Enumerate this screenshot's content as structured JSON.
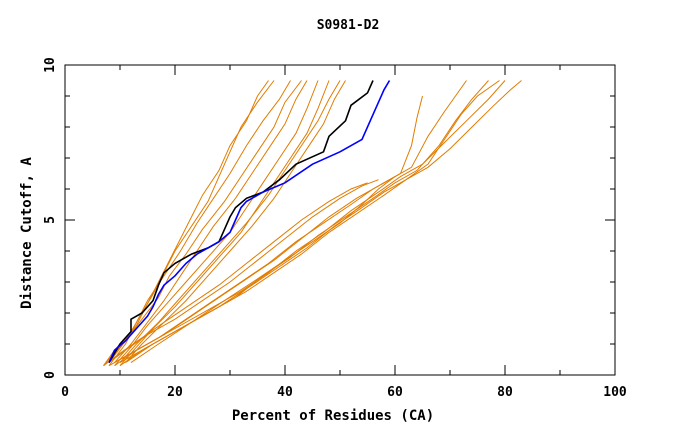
{
  "chart_data": {
    "type": "line",
    "title": "S0981-D2",
    "xlabel": "Percent of Residues (CA)",
    "ylabel": "Distance Cutoff, A",
    "xlim": [
      0,
      100
    ],
    "ylim": [
      0,
      10
    ],
    "x_ticks": [
      0,
      20,
      40,
      60,
      80,
      100
    ],
    "y_ticks": [
      0,
      5,
      10
    ],
    "x_tick_labels": [
      "0",
      "20",
      "40",
      "60",
      "80",
      "100"
    ],
    "y_tick_labels": [
      "0",
      "5",
      "10"
    ],
    "grid": false,
    "colors": {
      "highlight_1": "#000000",
      "highlight_2": "#0000ff",
      "others": "#e07c00"
    },
    "series": [
      {
        "color": "#000000",
        "points": [
          [
            8,
            0.4
          ],
          [
            9,
            0.7
          ],
          [
            10,
            1.0
          ],
          [
            12,
            1.4
          ],
          [
            12,
            1.8
          ],
          [
            14,
            2.0
          ],
          [
            16,
            2.4
          ],
          [
            17,
            2.9
          ],
          [
            18,
            3.3
          ],
          [
            20,
            3.6
          ],
          [
            23,
            3.9
          ],
          [
            26,
            4.1
          ],
          [
            28,
            4.3
          ],
          [
            29,
            4.7
          ],
          [
            30,
            5.1
          ],
          [
            31,
            5.4
          ],
          [
            33,
            5.7
          ],
          [
            36,
            5.9
          ],
          [
            39,
            6.3
          ],
          [
            42,
            6.8
          ],
          [
            47,
            7.2
          ],
          [
            48,
            7.7
          ],
          [
            51,
            8.2
          ],
          [
            52,
            8.7
          ],
          [
            55,
            9.1
          ],
          [
            56,
            9.5
          ]
        ]
      },
      {
        "color": "#0000ff",
        "points": [
          [
            8,
            0.4
          ],
          [
            9,
            0.8
          ],
          [
            11,
            1.1
          ],
          [
            13,
            1.5
          ],
          [
            15,
            1.9
          ],
          [
            16,
            2.2
          ],
          [
            17,
            2.6
          ],
          [
            18,
            2.9
          ],
          [
            20,
            3.2
          ],
          [
            22,
            3.6
          ],
          [
            24,
            3.9
          ],
          [
            26,
            4.1
          ],
          [
            28,
            4.3
          ],
          [
            30,
            4.6
          ],
          [
            31,
            5.0
          ],
          [
            32,
            5.4
          ],
          [
            33,
            5.6
          ],
          [
            36,
            5.9
          ],
          [
            40,
            6.2
          ],
          [
            45,
            6.8
          ],
          [
            50,
            7.2
          ],
          [
            54,
            7.6
          ],
          [
            56,
            8.4
          ],
          [
            58,
            9.2
          ],
          [
            59,
            9.5
          ]
        ]
      },
      {
        "color": "#e07c00",
        "points": [
          [
            7,
            0.3
          ],
          [
            10,
            0.9
          ],
          [
            13,
            1.6
          ],
          [
            15,
            2.3
          ],
          [
            17,
            3.0
          ],
          [
            19,
            3.7
          ],
          [
            21,
            4.4
          ],
          [
            23,
            5.1
          ],
          [
            25,
            5.8
          ],
          [
            28,
            6.6
          ],
          [
            30,
            7.4
          ],
          [
            33,
            8.2
          ],
          [
            35,
            9.0
          ],
          [
            37,
            9.5
          ]
        ]
      },
      {
        "color": "#e07c00",
        "points": [
          [
            7,
            0.3
          ],
          [
            9,
            0.8
          ],
          [
            12,
            1.4
          ],
          [
            14,
            2.0
          ],
          [
            16,
            2.6
          ],
          [
            18,
            3.3
          ],
          [
            20,
            4.0
          ],
          [
            23,
            4.8
          ],
          [
            26,
            5.6
          ],
          [
            28,
            6.4
          ],
          [
            30,
            7.2
          ],
          [
            32,
            8.0
          ],
          [
            35,
            8.8
          ],
          [
            38,
            9.5
          ]
        ]
      },
      {
        "color": "#e07c00",
        "points": [
          [
            8,
            0.3
          ],
          [
            11,
            1.0
          ],
          [
            13,
            1.7
          ],
          [
            15,
            2.4
          ],
          [
            18,
            3.2
          ],
          [
            21,
            4.0
          ],
          [
            24,
            4.9
          ],
          [
            27,
            5.7
          ],
          [
            30,
            6.5
          ],
          [
            33,
            7.4
          ],
          [
            36,
            8.2
          ],
          [
            39,
            8.9
          ],
          [
            41,
            9.5
          ]
        ]
      },
      {
        "color": "#e07c00",
        "points": [
          [
            8,
            0.4
          ],
          [
            11,
            1.1
          ],
          [
            14,
            1.8
          ],
          [
            17,
            2.5
          ],
          [
            19,
            3.2
          ],
          [
            22,
            3.9
          ],
          [
            25,
            4.7
          ],
          [
            29,
            5.6
          ],
          [
            32,
            6.4
          ],
          [
            35,
            7.2
          ],
          [
            38,
            8.0
          ],
          [
            40,
            8.8
          ],
          [
            43,
            9.5
          ]
        ]
      },
      {
        "color": "#e07c00",
        "points": [
          [
            9,
            0.4
          ],
          [
            12,
            1.0
          ],
          [
            15,
            1.7
          ],
          [
            18,
            2.4
          ],
          [
            21,
            3.2
          ],
          [
            24,
            4.0
          ],
          [
            27,
            4.8
          ],
          [
            31,
            5.7
          ],
          [
            34,
            6.5
          ],
          [
            37,
            7.3
          ],
          [
            40,
            8.1
          ],
          [
            42,
            8.9
          ],
          [
            44,
            9.5
          ]
        ]
      },
      {
        "color": "#e07c00",
        "points": [
          [
            9,
            0.3
          ],
          [
            12,
            0.9
          ],
          [
            15,
            1.6
          ],
          [
            18,
            2.2
          ],
          [
            22,
            3.0
          ],
          [
            26,
            3.8
          ],
          [
            30,
            4.6
          ],
          [
            33,
            5.4
          ],
          [
            36,
            6.2
          ],
          [
            39,
            7.0
          ],
          [
            42,
            7.8
          ],
          [
            44,
            8.6
          ],
          [
            46,
            9.5
          ]
        ]
      },
      {
        "color": "#e07c00",
        "points": [
          [
            10,
            0.3
          ],
          [
            13,
            0.9
          ],
          [
            16,
            1.5
          ],
          [
            20,
            2.2
          ],
          [
            24,
            3.0
          ],
          [
            28,
            3.8
          ],
          [
            32,
            4.6
          ],
          [
            35,
            5.4
          ],
          [
            38,
            6.2
          ],
          [
            41,
            7.0
          ],
          [
            44,
            7.8
          ],
          [
            46,
            8.6
          ],
          [
            48,
            9.5
          ]
        ]
      },
      {
        "color": "#e07c00",
        "points": [
          [
            10,
            0.4
          ],
          [
            13,
            1.0
          ],
          [
            17,
            1.7
          ],
          [
            21,
            2.5
          ],
          [
            25,
            3.3
          ],
          [
            29,
            4.1
          ],
          [
            33,
            4.9
          ],
          [
            37,
            5.8
          ],
          [
            40,
            6.6
          ],
          [
            43,
            7.4
          ],
          [
            46,
            8.2
          ],
          [
            48,
            8.9
          ],
          [
            50,
            9.5
          ]
        ]
      },
      {
        "color": "#e07c00",
        "points": [
          [
            11,
            0.4
          ],
          [
            14,
            1.0
          ],
          [
            18,
            1.7
          ],
          [
            22,
            2.4
          ],
          [
            26,
            3.2
          ],
          [
            30,
            4.0
          ],
          [
            34,
            4.8
          ],
          [
            38,
            5.7
          ],
          [
            41,
            6.5
          ],
          [
            44,
            7.3
          ],
          [
            47,
            8.1
          ],
          [
            49,
            8.9
          ],
          [
            51,
            9.5
          ]
        ]
      },
      {
        "color": "#e07c00",
        "points": [
          [
            7,
            0.3
          ],
          [
            10,
            0.7
          ],
          [
            14,
            1.2
          ],
          [
            18,
            1.7
          ],
          [
            23,
            2.3
          ],
          [
            28,
            2.9
          ],
          [
            33,
            3.6
          ],
          [
            38,
            4.3
          ],
          [
            43,
            5.0
          ],
          [
            48,
            5.6
          ],
          [
            52,
            6.0
          ],
          [
            55,
            6.2
          ]
        ]
      },
      {
        "color": "#e07c00",
        "points": [
          [
            8,
            0.4
          ],
          [
            11,
            0.8
          ],
          [
            15,
            1.3
          ],
          [
            20,
            1.8
          ],
          [
            25,
            2.4
          ],
          [
            30,
            3.0
          ],
          [
            35,
            3.7
          ],
          [
            40,
            4.4
          ],
          [
            45,
            5.1
          ],
          [
            50,
            5.7
          ],
          [
            54,
            6.1
          ],
          [
            57,
            6.3
          ]
        ]
      },
      {
        "color": "#e07c00",
        "points": [
          [
            8,
            0.3
          ],
          [
            12,
            0.7
          ],
          [
            17,
            1.2
          ],
          [
            22,
            1.8
          ],
          [
            27,
            2.4
          ],
          [
            32,
            3.0
          ],
          [
            37,
            3.6
          ],
          [
            42,
            4.3
          ],
          [
            47,
            4.9
          ],
          [
            52,
            5.5
          ],
          [
            56,
            6.0
          ],
          [
            60,
            6.4
          ]
        ]
      },
      {
        "color": "#e07c00",
        "points": [
          [
            9,
            0.3
          ],
          [
            13,
            0.8
          ],
          [
            18,
            1.3
          ],
          [
            23,
            1.9
          ],
          [
            28,
            2.5
          ],
          [
            33,
            3.1
          ],
          [
            38,
            3.7
          ],
          [
            43,
            4.4
          ],
          [
            48,
            5.1
          ],
          [
            53,
            5.7
          ],
          [
            57,
            6.1
          ],
          [
            61,
            6.5
          ],
          [
            63,
            7.4
          ],
          [
            64,
            8.3
          ],
          [
            65,
            9.0
          ]
        ]
      },
      {
        "color": "#e07c00",
        "points": [
          [
            10,
            0.3
          ],
          [
            14,
            0.8
          ],
          [
            19,
            1.3
          ],
          [
            25,
            1.9
          ],
          [
            31,
            2.5
          ],
          [
            36,
            3.2
          ],
          [
            41,
            3.8
          ],
          [
            46,
            4.5
          ],
          [
            51,
            5.1
          ],
          [
            56,
            5.7
          ],
          [
            60,
            6.2
          ],
          [
            64,
            6.6
          ],
          [
            68,
            7.4
          ],
          [
            71,
            8.2
          ],
          [
            74,
            8.9
          ],
          [
            77,
            9.5
          ]
        ]
      },
      {
        "color": "#e07c00",
        "points": [
          [
            9,
            0.4
          ],
          [
            14,
            0.9
          ],
          [
            20,
            1.5
          ],
          [
            26,
            2.1
          ],
          [
            32,
            2.7
          ],
          [
            37,
            3.3
          ],
          [
            42,
            4.0
          ],
          [
            47,
            4.6
          ],
          [
            52,
            5.3
          ],
          [
            57,
            5.9
          ],
          [
            61,
            6.4
          ],
          [
            65,
            6.8
          ],
          [
            69,
            7.5
          ],
          [
            73,
            8.2
          ],
          [
            77,
            8.9
          ],
          [
            80,
            9.5
          ]
        ]
      },
      {
        "color": "#e07c00",
        "points": [
          [
            10,
            0.4
          ],
          [
            15,
            0.9
          ],
          [
            21,
            1.5
          ],
          [
            27,
            2.1
          ],
          [
            33,
            2.7
          ],
          [
            38,
            3.3
          ],
          [
            43,
            3.9
          ],
          [
            48,
            4.6
          ],
          [
            53,
            5.2
          ],
          [
            58,
            5.8
          ],
          [
            62,
            6.3
          ],
          [
            66,
            6.7
          ],
          [
            70,
            7.3
          ],
          [
            74,
            8.0
          ],
          [
            78,
            8.7
          ],
          [
            81,
            9.2
          ],
          [
            83,
            9.5
          ]
        ]
      },
      {
        "color": "#e07c00",
        "points": [
          [
            11,
            0.4
          ],
          [
            16,
            1.0
          ],
          [
            22,
            1.6
          ],
          [
            28,
            2.2
          ],
          [
            34,
            2.9
          ],
          [
            39,
            3.5
          ],
          [
            44,
            4.1
          ],
          [
            49,
            4.8
          ],
          [
            54,
            5.4
          ],
          [
            58,
            5.9
          ],
          [
            62,
            6.3
          ],
          [
            66,
            6.8
          ],
          [
            69,
            7.6
          ],
          [
            72,
            8.4
          ],
          [
            75,
            9.0
          ],
          [
            79,
            9.5
          ]
        ]
      },
      {
        "color": "#e07c00",
        "points": [
          [
            12,
            0.4
          ],
          [
            17,
            1.0
          ],
          [
            23,
            1.7
          ],
          [
            29,
            2.4
          ],
          [
            35,
            3.1
          ],
          [
            40,
            3.7
          ],
          [
            45,
            4.3
          ],
          [
            50,
            4.9
          ],
          [
            54,
            5.5
          ],
          [
            57,
            6.0
          ],
          [
            60,
            6.4
          ],
          [
            63,
            6.7
          ],
          [
            66,
            7.7
          ],
          [
            69,
            8.5
          ],
          [
            71,
            9.0
          ],
          [
            73,
            9.5
          ]
        ]
      }
    ]
  }
}
